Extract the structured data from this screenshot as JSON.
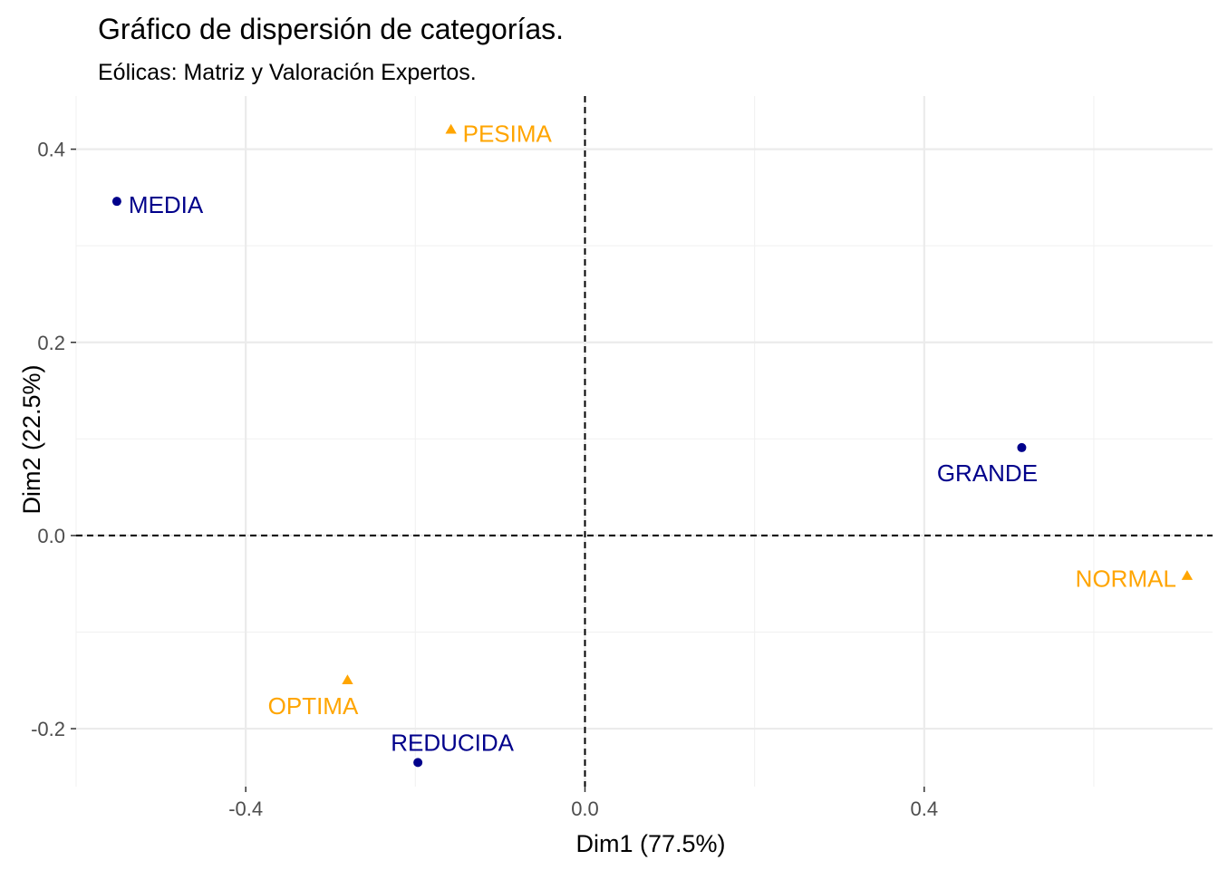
{
  "chart_data": {
    "type": "scatter",
    "title": "Gráfico de dispersión de categorías.",
    "subtitle": "Eólicas: Matriz y Valoración Expertos.",
    "xlabel": "Dim1 (77.5%)",
    "ylabel": "Dim2 (22.5%)",
    "xlim": [
      -0.6,
      0.74
    ],
    "ylim": [
      -0.26,
      0.455
    ],
    "x_ticks": [
      {
        "value": -0.4,
        "label": "-0.4"
      },
      {
        "value": 0.0,
        "label": "0.0"
      },
      {
        "value": 0.4,
        "label": "0.4"
      }
    ],
    "y_ticks": [
      {
        "value": -0.2,
        "label": "-0.2"
      },
      {
        "value": 0.0,
        "label": "0.0"
      },
      {
        "value": 0.2,
        "label": "0.2"
      },
      {
        "value": 0.4,
        "label": "0.4"
      }
    ],
    "x_minor_grid": [
      -0.6,
      -0.2,
      0.2,
      0.6
    ],
    "y_minor_grid": [
      -0.1,
      0.1,
      0.3
    ],
    "reference_lines": {
      "x": 0.0,
      "y": 0.0,
      "style": "dashed"
    },
    "grid": true,
    "series": [
      {
        "name": "Matriz",
        "color": "#00008B",
        "marker": "circle",
        "points": [
          {
            "label": "MEDIA",
            "x": -0.552,
            "y": 0.346,
            "anchor": "start-right"
          },
          {
            "label": "REDUCIDA",
            "x": -0.197,
            "y": -0.235,
            "anchor": "above"
          },
          {
            "label": "GRANDE",
            "x": 0.515,
            "y": 0.091,
            "anchor": "below"
          }
        ]
      },
      {
        "name": "Valoración Expertos",
        "color": "#FFA500",
        "marker": "triangle",
        "points": [
          {
            "label": "PESIMA",
            "x": -0.158,
            "y": 0.42,
            "anchor": "start-right"
          },
          {
            "label": "OPTIMA",
            "x": -0.28,
            "y": -0.15,
            "anchor": "below"
          },
          {
            "label": "NORMAL",
            "x": 0.71,
            "y": -0.042,
            "anchor": "end-left"
          }
        ]
      }
    ]
  }
}
